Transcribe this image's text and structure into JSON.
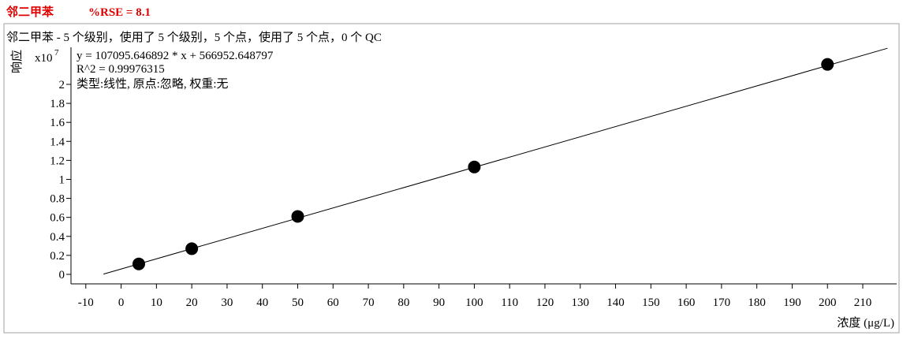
{
  "chart_data": {
    "type": "scatter",
    "title": "邻二甲苯",
    "subtitle": "%RSE = 8.1",
    "description": "邻二甲苯 - 5 个级别，使用了 5 个级别，5 个点，使用了 5 个点，0 个 QC",
    "annotations": [
      "y = 107095.646892 * x  + 566952.648797",
      "R^2 = 0.99976315",
      "类型:线性, 原点:忽略, 权重:无"
    ],
    "y_label": "响应",
    "y_multiplier": {
      "label": "x10",
      "exponent": "7"
    },
    "x_label": "浓度 (μg/L)",
    "points": {
      "x": [
        5,
        20,
        50,
        100,
        200
      ],
      "values": [
        0.11,
        0.27,
        0.61,
        1.13,
        2.21
      ],
      "color": "#000000"
    },
    "fit_line": {
      "x": [
        -5,
        217
      ],
      "values": [
        0.003,
        2.38
      ],
      "color": "#000000"
    },
    "xlim": [
      -14.2,
      219.6
    ],
    "ylim": [
      -0.1,
      2.39
    ],
    "xticks": [
      -10,
      0,
      10,
      20,
      30,
      40,
      50,
      60,
      70,
      80,
      90,
      100,
      110,
      120,
      130,
      140,
      150,
      160,
      170,
      180,
      190,
      200,
      210
    ],
    "yticks": [
      0,
      0.2,
      0.4,
      0.6,
      0.8,
      1,
      1.2,
      1.4,
      1.6,
      1.8,
      2
    ]
  }
}
